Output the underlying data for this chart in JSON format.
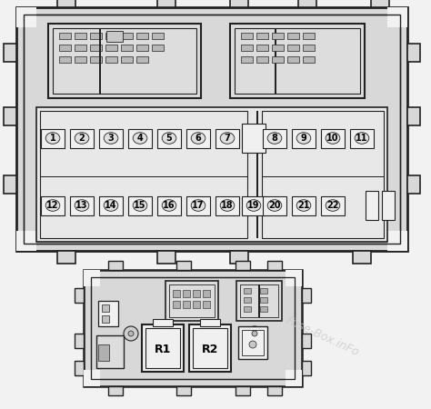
{
  "bg_color": "#f2f2f2",
  "body_fill": "#d8d8d8",
  "inner_fill": "#e8e8e8",
  "white_fill": "#ffffff",
  "line_color": "#222222",
  "fuse_fill": "#f0f0f0",
  "connector_fill": "#dddddd",
  "text_color": "#000000",
  "watermark": "Fuse-Box.inFo",
  "watermark_color": "#c8c8c8",
  "fuse_labels_row1": [
    "1",
    "2",
    "3",
    "4",
    "5",
    "6",
    "7"
  ],
  "fuse_labels_row2": [
    "12",
    "13",
    "14",
    "15",
    "16",
    "17",
    "18"
  ],
  "fuse_labels_row3": [
    "8",
    "9",
    "10",
    "11"
  ],
  "fuse_labels_row4": [
    "20",
    "21",
    "22"
  ],
  "fuse_label_19": "19"
}
